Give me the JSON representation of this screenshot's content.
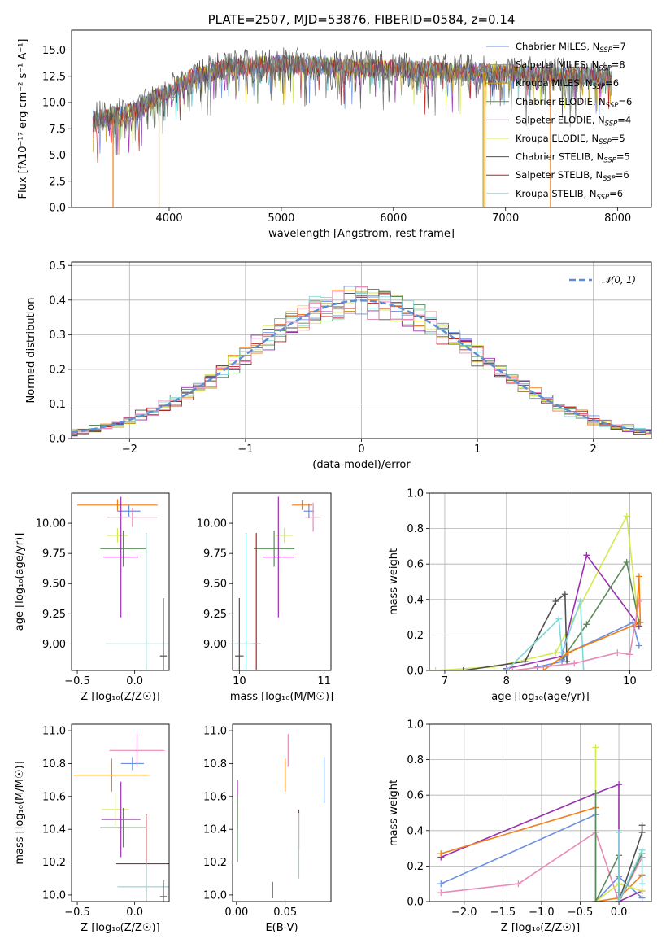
{
  "colors": {
    "chabrier_miles": "#6a8fe0",
    "salpeter_miles": "#f07f1a",
    "kroupa_miles": "#bfa020",
    "chabrier_elodie": "#5a8a5a",
    "salpeter_elodie": "#9a30b0",
    "kroupa_elodie": "#d4ea50",
    "chabrier_stelib": "#505050",
    "salpeter_stelib": "#c02020",
    "kroupa_stelib": "#80d8dc",
    "pink": "#e88ab8",
    "grid": "#b0b0b0",
    "gauss": "#5b8ed6",
    "spectrum": "#808080"
  },
  "chart_data": [
    {
      "id": "spectrum",
      "type": "line",
      "title": "PLATE=2507, MJD=53876, FIBERID=0584, z=0.14",
      "xlabel": "wavelength [Angstrom, rest frame]",
      "ylabel": "Flux [fλ10⁻¹⁷ erg cm⁻² s⁻¹ A⁻¹]",
      "xlim": [
        3130,
        8300
      ],
      "ylim": [
        0,
        16.9
      ],
      "xticks": [
        4000,
        5000,
        6000,
        7000,
        8000
      ],
      "yticks": [
        0.0,
        2.5,
        5.0,
        7.5,
        10.0,
        12.5,
        15.0
      ],
      "ytick_labels": [
        "0.0",
        "2.5",
        "5.0",
        "7.5",
        "10.0",
        "12.5",
        "15.0"
      ],
      "legend_position": "top-right",
      "series": [
        {
          "name": "Chabrier MILES, N",
          "sub": "SSP",
          "suffix": "=7",
          "color_key": "chabrier_miles"
        },
        {
          "name": "Salpeter MILES, N",
          "sub": "SSP",
          "suffix": "=8",
          "color_key": "salpeter_miles"
        },
        {
          "name": "Kroupa MILES, N",
          "sub": "SSP",
          "suffix": "=6",
          "color_key": "kroupa_miles"
        },
        {
          "name": "Chabrier ELODIE, N",
          "sub": "SSP",
          "suffix": "=6",
          "color_key": "chabrier_elodie"
        },
        {
          "name": "Salpeter ELODIE, N",
          "sub": "SSP",
          "suffix": "=4",
          "color_key": "salpeter_elodie"
        },
        {
          "name": "Kroupa ELODIE, N",
          "sub": "SSP",
          "suffix": "=5",
          "color_key": "kroupa_elodie"
        },
        {
          "name": "Chabrier STELIB, N",
          "sub": "SSP",
          "suffix": "=5",
          "color_key": "chabrier_stelib"
        },
        {
          "name": "Salpeter STELIB, N",
          "sub": "SSP",
          "suffix": "=6",
          "color_key": "salpeter_stelib"
        },
        {
          "name": "Kroupa STELIB, N",
          "sub": "SSP",
          "suffix": "=6",
          "color_key": "kroupa_stelib"
        }
      ],
      "continuum": [
        [
          3320,
          8.4
        ],
        [
          3500,
          8.6
        ],
        [
          3700,
          9.2
        ],
        [
          3900,
          10.6
        ],
        [
          4000,
          11.0
        ],
        [
          4200,
          12.4
        ],
        [
          4500,
          13.3
        ],
        [
          5000,
          13.7
        ],
        [
          5500,
          13.4
        ],
        [
          6000,
          13.2
        ],
        [
          6500,
          13.0
        ],
        [
          7000,
          12.8
        ],
        [
          7500,
          12.6
        ],
        [
          7950,
          12.4
        ]
      ],
      "model_dropouts": [
        {
          "x": 3500,
          "color_key": "salpeter_miles"
        },
        {
          "x": 3910,
          "color_key": "kroupa_miles"
        },
        {
          "x": 6800,
          "color_key": "kroupa_miles"
        },
        {
          "x": 6815,
          "color_key": "salpeter_miles"
        },
        {
          "x": 7400,
          "color_key": "salpeter_miles"
        }
      ]
    },
    {
      "id": "residuals",
      "type": "histogram",
      "xlabel": "(data-model)/error",
      "ylabel": "Normed distribution",
      "xlim": [
        -2.5,
        2.5
      ],
      "ylim": [
        0,
        0.51
      ],
      "xticks": [
        -2,
        -1,
        0,
        1,
        2
      ],
      "xtick_labels": [
        "−2",
        "−1",
        "0",
        "1",
        "2"
      ],
      "yticks": [
        0.0,
        0.1,
        0.2,
        0.3,
        0.4,
        0.5
      ],
      "ytick_labels": [
        "0.0",
        "0.1",
        "0.2",
        "0.3",
        "0.4",
        "0.5"
      ],
      "grid": true,
      "bin_width": 0.1,
      "legend": "𝒩(0, 1)",
      "legend_position": "top-right"
    },
    {
      "id": "z_age",
      "type": "errorbar",
      "xlabel": "Z [log₁₀(Z/Z☉)]",
      "ylabel": "age  [log₁₀(age/yr)]",
      "xlim": [
        -0.55,
        0.3
      ],
      "ylim": [
        8.78,
        10.25
      ],
      "xticks": [
        -0.5,
        0.0
      ],
      "xtick_labels": [
        "−0.5",
        "0.0"
      ],
      "yticks": [
        9.0,
        9.25,
        9.5,
        9.75,
        10.0
      ],
      "ytick_labels": [
        "9.00",
        "9.25",
        "9.50",
        "9.75",
        "10.00"
      ],
      "points": [
        {
          "x": -0.15,
          "y": 10.15,
          "xerr": 0.35,
          "yerr": 0.05,
          "color_key": "salpeter_miles"
        },
        {
          "x": -0.05,
          "y": 10.1,
          "xerr": 0.1,
          "yerr": 0.05,
          "color_key": "chabrier_miles"
        },
        {
          "x": -0.02,
          "y": 10.05,
          "xerr": 0.22,
          "yerr": 0.08,
          "color_key": "pink"
        },
        {
          "x": -0.15,
          "y": 9.9,
          "xerr": 0.09,
          "yerr": 0.06,
          "color_key": "kroupa_elodie"
        },
        {
          "x": -0.1,
          "y": 9.79,
          "xerr": 0.2,
          "yerr": 0.15,
          "color_key": "chabrier_elodie"
        },
        {
          "x": -0.12,
          "y": 9.72,
          "xerr": 0.15,
          "yerr": 0.5,
          "color_key": "salpeter_elodie"
        },
        {
          "x": 0.1,
          "y": 9.0,
          "xerr": 0.35,
          "yerr": 0.92,
          "color_key": "kroupa_stelib"
        },
        {
          "x": 0.25,
          "y": 8.9,
          "xerr": 0.03,
          "yerr": 0.48,
          "color_key": "chabrier_stelib"
        }
      ]
    },
    {
      "id": "mass_age",
      "type": "errorbar",
      "xlabel": "mass [log₁₀(M/M☉)]",
      "ylabel": "",
      "xlim": [
        9.92,
        11.08
      ],
      "ylim": [
        8.78,
        10.25
      ],
      "xticks": [
        10,
        11
      ],
      "xtick_labels": [
        "10",
        "11"
      ],
      "yticks": [
        9.0,
        9.25,
        9.5,
        9.75,
        10.0
      ],
      "ytick_labels": [
        "9.00",
        "9.25",
        "9.50",
        "9.75",
        "10.00"
      ],
      "points": [
        {
          "x": 10.74,
          "y": 10.15,
          "xerr": 0.12,
          "yerr": 0.04,
          "color_key": "salpeter_miles"
        },
        {
          "x": 10.82,
          "y": 10.1,
          "xerr": 0.06,
          "yerr": 0.06,
          "color_key": "chabrier_miles"
        },
        {
          "x": 10.87,
          "y": 10.05,
          "xerr": 0.09,
          "yerr": 0.12,
          "color_key": "pink"
        },
        {
          "x": 10.53,
          "y": 9.9,
          "xerr": 0.1,
          "yerr": 0.06,
          "color_key": "kroupa_elodie"
        },
        {
          "x": 10.41,
          "y": 9.79,
          "xerr": 0.24,
          "yerr": 0.15,
          "color_key": "chabrier_elodie"
        },
        {
          "x": 10.46,
          "y": 9.72,
          "xerr": 0.18,
          "yerr": 0.5,
          "color_key": "salpeter_elodie"
        },
        {
          "x": 10.2,
          "y": 9.0,
          "xerr": 0.05,
          "yerr": 0.92,
          "color_key": "salpeter_stelib"
        },
        {
          "x": 10.08,
          "y": 9.0,
          "xerr": 0.15,
          "yerr": 0.92,
          "color_key": "kroupa_stelib"
        },
        {
          "x": 10.0,
          "y": 8.9,
          "xerr": 0.05,
          "yerr": 0.48,
          "color_key": "chabrier_stelib"
        }
      ]
    },
    {
      "id": "age_weight",
      "type": "line",
      "xlabel": "age  [log₁₀(age/yr)]",
      "ylabel": "mass weight",
      "xlim": [
        6.75,
        10.35
      ],
      "ylim": [
        0,
        1.0
      ],
      "xticks": [
        7,
        8,
        9,
        10
      ],
      "xtick_labels": [
        "7",
        "8",
        "9",
        "10"
      ],
      "yticks": [
        0.0,
        0.2,
        0.4,
        0.6,
        0.8,
        1.0
      ],
      "ytick_labels": [
        "0.0",
        "0.2",
        "0.4",
        "0.6",
        "0.8",
        "1.0"
      ],
      "grid": true,
      "series": [
        {
          "color_key": "kroupa_elodie",
          "x": [
            6.85,
            7.8,
            8.8,
            9.95,
            10.15
          ],
          "y": [
            0.0,
            0.02,
            0.1,
            0.87,
            0.25
          ]
        },
        {
          "color_key": "salpeter_elodie",
          "x": [
            8.0,
            8.9,
            9.3,
            10.15
          ],
          "y": [
            0.01,
            0.08,
            0.65,
            0.25
          ]
        },
        {
          "color_key": "chabrier_elodie",
          "x": [
            8.9,
            9.3,
            9.95,
            10.15
          ],
          "y": [
            0.06,
            0.26,
            0.61,
            0.27
          ]
        },
        {
          "color_key": "chabrier_stelib",
          "x": [
            7.3,
            8.3,
            8.8,
            8.95,
            8.98
          ],
          "y": [
            0.0,
            0.05,
            0.39,
            0.43,
            0.05
          ]
        },
        {
          "color_key": "kroupa_stelib",
          "x": [
            8.0,
            8.85,
            8.9,
            9.2,
            9.25
          ],
          "y": [
            0.0,
            0.29,
            0.1,
            0.39,
            0.0
          ]
        },
        {
          "color_key": "chabrier_miles",
          "x": [
            8.5,
            8.9,
            9.0,
            10.05,
            10.15
          ],
          "y": [
            0.02,
            0.05,
            0.1,
            0.27,
            0.14
          ]
        },
        {
          "color_key": "salpeter_miles",
          "x": [
            8.6,
            9.0,
            10.1,
            10.15,
            10.17
          ],
          "y": [
            0.0,
            0.1,
            0.26,
            0.53,
            0.27
          ]
        },
        {
          "color_key": "pink",
          "x": [
            8.1,
            9.1,
            9.8,
            10.0,
            10.15
          ],
          "y": [
            0.0,
            0.04,
            0.1,
            0.09,
            0.39
          ]
        }
      ]
    },
    {
      "id": "z_mass",
      "type": "errorbar",
      "xlabel": "Z [log₁₀(Z/Z☉)]",
      "ylabel": "mass [log₁₀(M/M☉)]",
      "xlim": [
        -0.55,
        0.3
      ],
      "ylim": [
        9.96,
        11.04
      ],
      "xticks": [
        -0.5,
        0.0
      ],
      "xtick_labels": [
        "−0.5",
        "0.0"
      ],
      "yticks": [
        10.0,
        10.2,
        10.4,
        10.6,
        10.8,
        11.0
      ],
      "ytick_labels": [
        "10.0",
        "10.2",
        "10.4",
        "10.6",
        "10.8",
        "11.0"
      ],
      "points": [
        {
          "x": 0.02,
          "y": 10.88,
          "xerr": 0.24,
          "yerr": 0.1,
          "color_key": "pink"
        },
        {
          "x": -0.02,
          "y": 10.8,
          "xerr": 0.1,
          "yerr": 0.04,
          "color_key": "chabrier_miles"
        },
        {
          "x": -0.2,
          "y": 10.73,
          "xerr": 0.33,
          "yerr": 0.1,
          "color_key": "salpeter_miles"
        },
        {
          "x": -0.17,
          "y": 10.52,
          "xerr": 0.12,
          "yerr": 0.1,
          "color_key": "kroupa_elodie"
        },
        {
          "x": -0.12,
          "y": 10.46,
          "xerr": 0.17,
          "yerr": 0.23,
          "color_key": "salpeter_elodie"
        },
        {
          "x": -0.1,
          "y": 10.41,
          "xerr": 0.2,
          "yerr": 0.12,
          "color_key": "chabrier_elodie"
        },
        {
          "x": 0.1,
          "y": 10.19,
          "xerr": 0.26,
          "yerr": 0.3,
          "color_key": "salpeter_stelib"
        },
        {
          "x": 0.1,
          "y": 10.05,
          "xerr": 0.25,
          "yerr": 0.15,
          "color_key": "kroupa_stelib"
        },
        {
          "x": 0.25,
          "y": 9.99,
          "xerr": 0.03,
          "yerr": 0.1,
          "color_key": "chabrier_stelib"
        }
      ]
    },
    {
      "id": "ebv_mass",
      "type": "errorbar",
      "xlabel": "E(B-V)",
      "ylabel": "",
      "xlim": [
        -0.004,
        0.097
      ],
      "ylim": [
        9.96,
        11.04
      ],
      "xticks": [
        0.0,
        0.05
      ],
      "xtick_labels": [
        "0.00",
        "0.05"
      ],
      "yticks": [
        10.0,
        10.2,
        10.4,
        10.6,
        10.8,
        11.0
      ],
      "ytick_labels": [
        "10.0",
        "10.2",
        "10.4",
        "10.6",
        "10.8",
        "11.0"
      ],
      "points": [
        {
          "x": 0.053,
          "y": 10.88,
          "xerr": 0.0,
          "yerr": 0.1,
          "color_key": "pink"
        },
        {
          "x": 0.09,
          "y": 10.7,
          "xerr": 0.0,
          "yerr": 0.14,
          "color_key": "chabrier_miles"
        },
        {
          "x": 0.05,
          "y": 10.73,
          "xerr": 0.0,
          "yerr": 0.1,
          "color_key": "salpeter_miles"
        },
        {
          "x": 0.001,
          "y": 10.55,
          "xerr": 0.0,
          "yerr": 0.1,
          "color_key": "kroupa_elodie"
        },
        {
          "x": 0.001,
          "y": 10.55,
          "xerr": 0.0,
          "yerr": 0.15,
          "color_key": "salpeter_elodie"
        },
        {
          "x": 0.001,
          "y": 10.4,
          "xerr": 0.0,
          "yerr": 0.2,
          "color_key": "chabrier_elodie"
        },
        {
          "x": 0.064,
          "y": 10.4,
          "xerr": 0.0,
          "yerr": 0.12,
          "color_key": "salpeter_stelib"
        },
        {
          "x": 0.064,
          "y": 10.3,
          "xerr": 0.0,
          "yerr": 0.2,
          "color_key": "kroupa_stelib"
        },
        {
          "x": 0.037,
          "y": 10.03,
          "xerr": 0.0,
          "yerr": 0.05,
          "color_key": "chabrier_stelib"
        }
      ]
    },
    {
      "id": "z_weight",
      "type": "line",
      "xlabel": "Z [log₁₀(Z/Z☉)]",
      "ylabel": "mass weight",
      "xlim": [
        -2.45,
        0.42
      ],
      "ylim": [
        0,
        1.0
      ],
      "xticks": [
        -2.0,
        -1.5,
        -1.0,
        -0.5,
        0.0
      ],
      "xtick_labels": [
        "−2.0",
        "−1.5",
        "−1.0",
        "−0.5",
        "0.0"
      ],
      "yticks": [
        0.0,
        0.2,
        0.4,
        0.6,
        0.8,
        1.0
      ],
      "ytick_labels": [
        "0.0",
        "0.2",
        "0.4",
        "0.6",
        "0.8",
        "1.0"
      ],
      "grid": true,
      "series": [
        {
          "color_key": "salpeter_elodie",
          "x": [
            -2.3,
            -0.3,
            0.0,
            0.0,
            0.3
          ],
          "y": [
            0.25,
            0.61,
            0.66,
            0.0,
            0.06
          ]
        },
        {
          "color_key": "salpeter_miles",
          "x": [
            -2.3,
            -0.3,
            -0.3,
            0.0,
            0.3
          ],
          "y": [
            0.27,
            0.53,
            0.0,
            0.02,
            0.15
          ]
        },
        {
          "color_key": "chabrier_miles",
          "x": [
            -2.3,
            -0.3,
            -0.3,
            0.0,
            0.3
          ],
          "y": [
            0.1,
            0.49,
            0.0,
            0.14,
            0.02
          ]
        },
        {
          "color_key": "pink",
          "x": [
            -2.3,
            -1.3,
            -0.3,
            0.0,
            0.3
          ],
          "y": [
            0.05,
            0.1,
            0.39,
            0.0,
            0.25
          ]
        },
        {
          "color_key": "kroupa_elodie",
          "x": [
            -0.3,
            -0.3,
            0.0,
            0.3
          ],
          "y": [
            0.87,
            0.0,
            0.1,
            0.06
          ]
        },
        {
          "color_key": "chabrier_elodie",
          "x": [
            -0.3,
            -0.3,
            0.0,
            0.0,
            0.3
          ],
          "y": [
            0.61,
            0.0,
            0.26,
            0.0,
            0.27
          ]
        },
        {
          "color_key": "chabrier_stelib",
          "x": [
            0.0,
            0.0,
            0.3,
            0.3
          ],
          "y": [
            0.05,
            0.0,
            0.39,
            0.43
          ]
        },
        {
          "color_key": "kroupa_stelib",
          "x": [
            0.0,
            0.0,
            0.3,
            0.3
          ],
          "y": [
            0.39,
            0.0,
            0.29,
            0.1
          ]
        }
      ]
    }
  ]
}
